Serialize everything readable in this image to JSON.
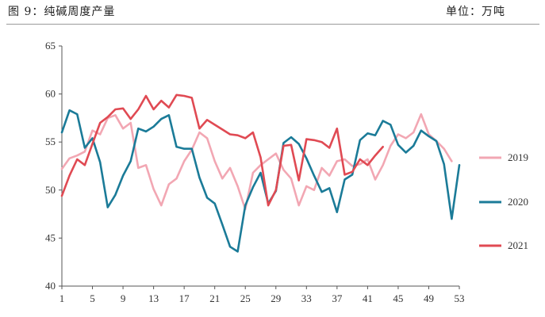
{
  "header": {
    "title": "图 9：纯碱周度产量",
    "unit": "单位：万吨"
  },
  "chart_data": {
    "type": "line",
    "title": "纯碱周度产量",
    "xlabel": "",
    "ylabel": "",
    "xlim": [
      1,
      53
    ],
    "ylim": [
      40,
      65
    ],
    "x_ticks": [
      1,
      5,
      9,
      13,
      17,
      21,
      25,
      29,
      33,
      37,
      41,
      45,
      49,
      53
    ],
    "y_ticks": [
      40,
      45,
      50,
      55,
      60,
      65
    ],
    "grid": false,
    "legend_position": "right",
    "series": [
      {
        "name": "2019",
        "color": "#f2a7b3",
        "x": [
          1,
          2,
          3,
          4,
          5,
          6,
          7,
          8,
          9,
          10,
          11,
          12,
          13,
          14,
          15,
          16,
          17,
          18,
          19,
          20,
          21,
          22,
          23,
          24,
          25,
          26,
          27,
          28,
          29,
          30,
          31,
          32,
          33,
          34,
          35,
          36,
          37,
          38,
          39,
          40,
          41,
          42,
          43,
          44,
          45,
          46,
          47,
          48,
          49,
          50,
          51,
          52
        ],
        "values": [
          52.2,
          53.3,
          53.6,
          54.0,
          56.2,
          55.8,
          57.5,
          57.8,
          56.4,
          57.0,
          52.3,
          52.6,
          50.1,
          48.4,
          50.6,
          51.2,
          53.0,
          54.2,
          56.0,
          55.4,
          53.0,
          51.2,
          52.3,
          50.4,
          48.0,
          51.8,
          52.6,
          53.2,
          53.8,
          52.1,
          51.2,
          48.4,
          50.4,
          50.0,
          52.3,
          51.5,
          53.0,
          53.2,
          52.5,
          52.7,
          53.2,
          51.1,
          52.6,
          54.6,
          55.8,
          55.4,
          56.0,
          57.9,
          55.8,
          55.1,
          54.3,
          53.0
        ]
      },
      {
        "name": "2020",
        "color": "#1b7b98",
        "x": [
          1,
          2,
          3,
          4,
          5,
          6,
          7,
          8,
          9,
          10,
          11,
          12,
          13,
          14,
          15,
          16,
          17,
          18,
          19,
          20,
          21,
          22,
          23,
          24,
          25,
          26,
          27,
          28,
          29,
          30,
          31,
          32,
          33,
          34,
          35,
          36,
          37,
          38,
          39,
          40,
          41,
          42,
          43,
          44,
          45,
          46,
          47,
          48,
          49,
          50,
          51,
          52,
          53
        ],
        "values": [
          56.0,
          58.3,
          57.9,
          54.4,
          55.4,
          52.9,
          48.2,
          49.5,
          51.5,
          53.0,
          56.4,
          56.1,
          56.6,
          57.4,
          57.8,
          54.5,
          54.3,
          54.3,
          51.3,
          49.2,
          48.6,
          46.4,
          44.1,
          43.6,
          48.4,
          50.3,
          51.8,
          48.6,
          49.9,
          54.9,
          55.5,
          54.8,
          53.3,
          51.5,
          49.8,
          50.2,
          47.7,
          51.1,
          51.6,
          55.2,
          55.9,
          55.7,
          57.2,
          56.8,
          54.7,
          53.9,
          54.6,
          56.2,
          55.6,
          55.1,
          52.7,
          47.0,
          52.6
        ]
      },
      {
        "name": "2021",
        "color": "#e04a53",
        "x": [
          1,
          2,
          3,
          4,
          5,
          6,
          7,
          8,
          9,
          10,
          11,
          12,
          13,
          14,
          15,
          16,
          17,
          18,
          19,
          20,
          21,
          22,
          23,
          24,
          25,
          26,
          27,
          28,
          29,
          30,
          31,
          32,
          33,
          34,
          35,
          36,
          37,
          38,
          39,
          40,
          41,
          42,
          43
        ],
        "values": [
          49.4,
          51.5,
          53.2,
          52.6,
          54.8,
          57.0,
          57.6,
          58.4,
          58.5,
          57.4,
          58.4,
          59.8,
          58.4,
          59.3,
          58.6,
          59.9,
          59.8,
          59.6,
          56.4,
          57.3,
          56.8,
          56.3,
          55.8,
          55.7,
          55.4,
          56.0,
          53.4,
          48.4,
          50.0,
          54.6,
          54.7,
          51.0,
          55.3,
          55.2,
          55.0,
          54.4,
          56.4,
          51.6,
          51.9,
          53.2,
          52.6,
          53.6,
          54.5
        ]
      }
    ]
  }
}
